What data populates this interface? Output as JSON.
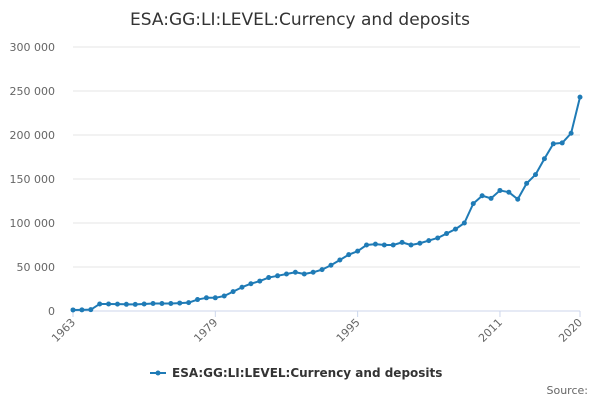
{
  "chart_data": {
    "type": "line",
    "title": "ESA:GG:LI:LEVEL:Currency and deposits",
    "xlabel": "",
    "ylabel": "",
    "xlim": [
      1963,
      2020
    ],
    "ylim": [
      0,
      300000
    ],
    "y_ticks": [
      0,
      50000,
      100000,
      150000,
      200000,
      250000,
      300000
    ],
    "y_tick_labels": [
      "0",
      "50 000",
      "100 000",
      "150 000",
      "200 000",
      "250 000",
      "300 000"
    ],
    "x_ticks": [
      1963,
      1979,
      1995,
      2011,
      2020
    ],
    "x_tick_labels": [
      "1963",
      "1979",
      "1995",
      "2011",
      "2020"
    ],
    "grid": true,
    "legend_position": "bottom-center",
    "series": [
      {
        "name": "ESA:GG:LI:LEVEL:Currency and deposits",
        "color": "#1f7bb6",
        "x": [
          1963,
          1964,
          1965,
          1966,
          1967,
          1968,
          1969,
          1970,
          1971,
          1972,
          1973,
          1974,
          1975,
          1976,
          1977,
          1978,
          1979,
          1980,
          1981,
          1982,
          1983,
          1984,
          1985,
          1986,
          1987,
          1988,
          1989,
          1990,
          1991,
          1992,
          1993,
          1994,
          1995,
          1996,
          1997,
          1998,
          1999,
          2000,
          2001,
          2002,
          2003,
          2004,
          2005,
          2006,
          2007,
          2008,
          2009,
          2010,
          2011,
          2012,
          2013,
          2014,
          2015,
          2016,
          2017,
          2018,
          2019,
          2020
        ],
        "y": [
          1200,
          1300,
          1500,
          8000,
          8000,
          7800,
          7600,
          7500,
          8000,
          8500,
          8500,
          8500,
          9000,
          9500,
          13000,
          15000,
          15000,
          17000,
          22000,
          27000,
          31000,
          34000,
          38000,
          40000,
          42000,
          44000,
          42000,
          44000,
          47000,
          52000,
          58000,
          64000,
          68000,
          75000,
          76000,
          75000,
          75000,
          78000,
          75000,
          77000,
          80000,
          83000,
          88000,
          93000,
          100000,
          122000,
          131000,
          128000,
          137000,
          135000,
          127000,
          145000,
          155000,
          173000,
          190000,
          191000,
          202000,
          243000
        ]
      }
    ]
  },
  "legend": {
    "label": "ESA:GG:LI:LEVEL:Currency and deposits"
  },
  "footer": {
    "source_label": "Source:"
  }
}
